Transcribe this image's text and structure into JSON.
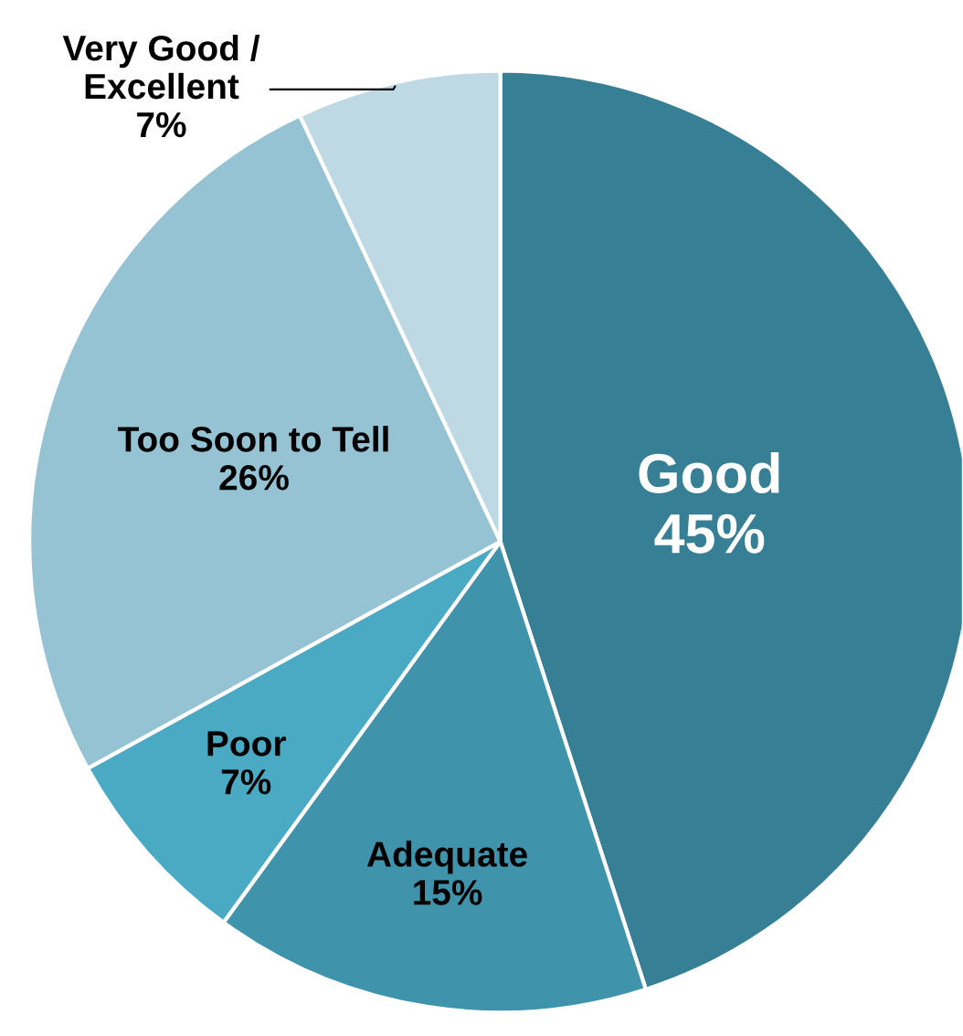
{
  "chart_data": {
    "type": "pie",
    "categories": [
      "Good",
      "Adequate",
      "Poor",
      "Too Soon to Tell",
      "Very Good /\nExcellent"
    ],
    "values": [
      45,
      15,
      7,
      26,
      7
    ],
    "value_labels": [
      "45%",
      "15%",
      "7%",
      "26%",
      "7%"
    ],
    "colors": [
      "#377f95",
      "#3f94ab",
      "#4aaac4",
      "#95c3d4",
      "#bed9e4"
    ]
  }
}
